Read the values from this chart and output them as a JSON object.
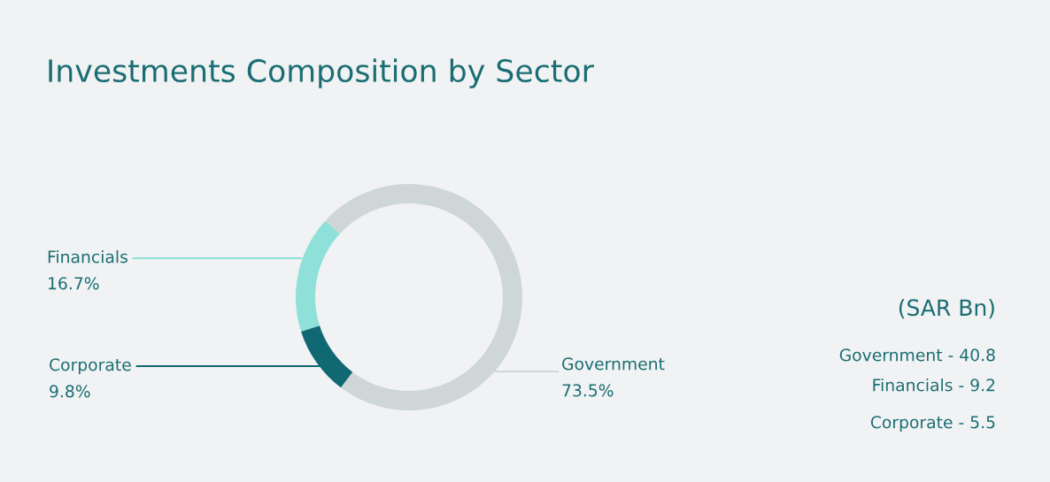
{
  "chart_data": {
    "type": "donut",
    "title": "Investments Composition by Sector",
    "categories": [
      "Government",
      "Financials",
      "Corporate"
    ],
    "values": [
      73.5,
      16.7,
      9.8
    ],
    "colors": [
      "#cfd6d6",
      "#8fe0d9",
      "#0f6872"
    ],
    "value_labels": [
      "73.5%",
      "16.7%",
      "9.8%"
    ],
    "legend": false,
    "annotations": [
      "(SAR Bn)",
      "Government - 40.8",
      "Financials - 9.2",
      "Corporate - 5.5"
    ]
  }
}
